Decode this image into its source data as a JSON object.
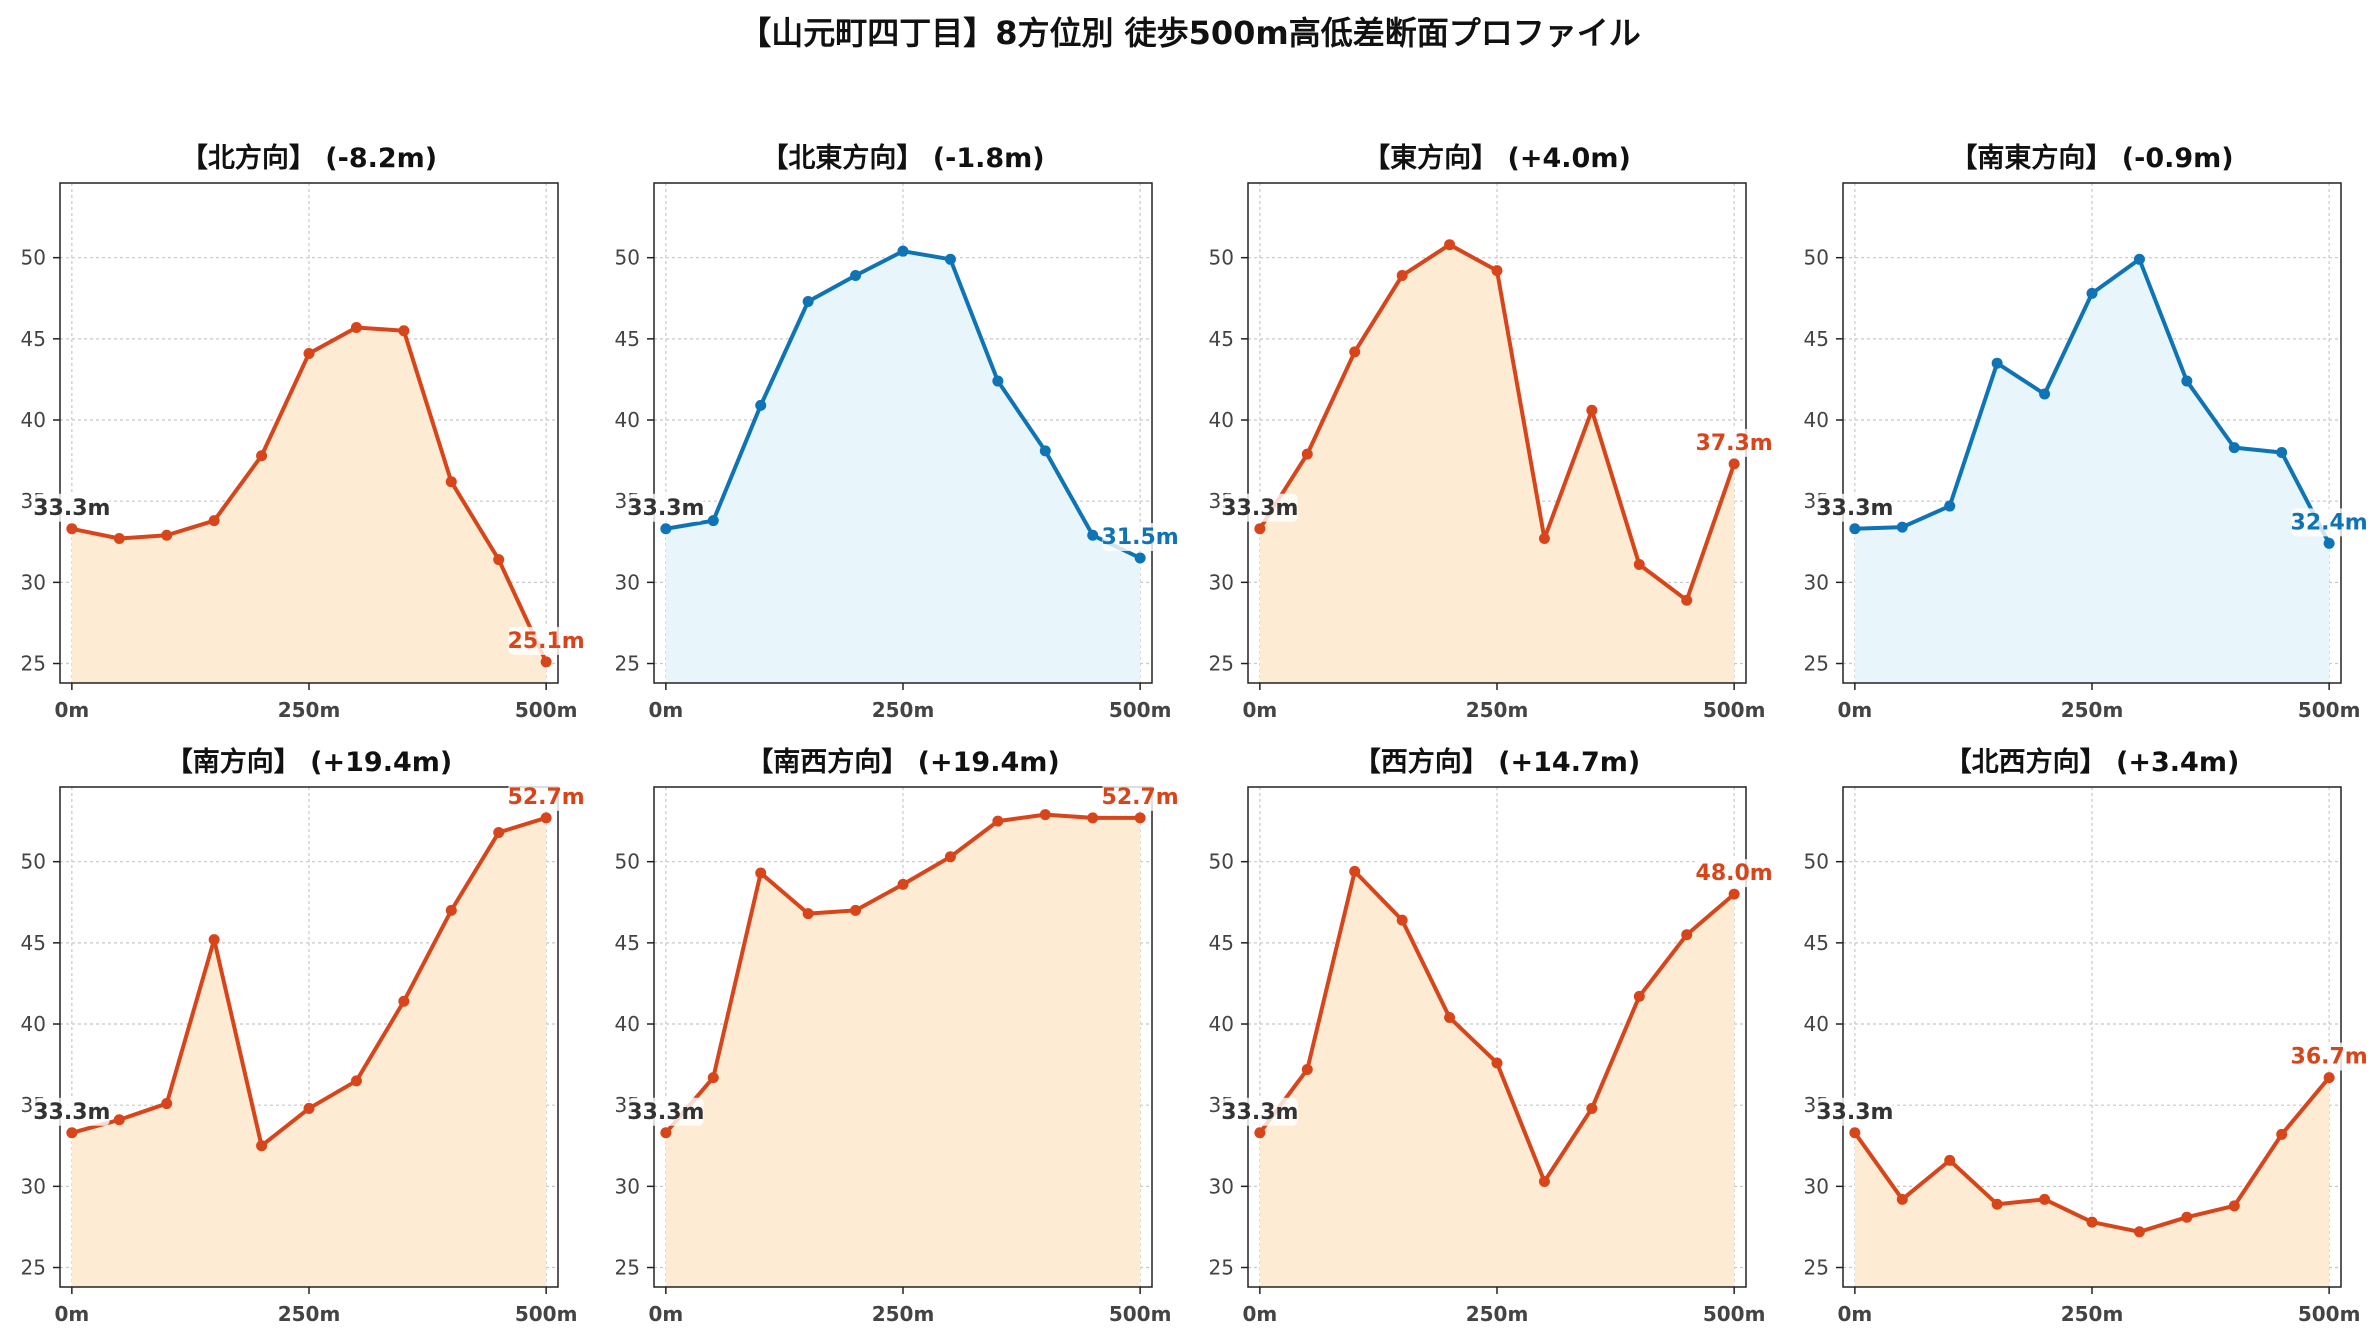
{
  "title": "【山元町四丁目】8方位別 徒歩500m高低差断面プロファイル",
  "colors": {
    "down_line": "#0e74b5",
    "down_fill": "#e8f6fb",
    "up_line": "#d9451a",
    "up_fill": "#fdecd3",
    "start_label": "#333333",
    "grid": "#c8c8c8",
    "axis": "#222222",
    "tick_label": "#444444"
  },
  "chart_data": [
    {
      "type": "area",
      "title": "【北方向】 (-8.2m)",
      "trend": "down",
      "x": [
        0,
        50,
        100,
        150,
        200,
        250,
        300,
        350,
        400,
        450,
        500
      ],
      "values": [
        33.3,
        32.7,
        32.9,
        33.8,
        37.8,
        44.1,
        45.7,
        45.5,
        36.2,
        31.4,
        25.1
      ],
      "start_label": "33.3m",
      "end_label": "25.1m",
      "xticks": [
        "0m",
        "250m",
        "500m"
      ],
      "yticks": [
        25,
        30,
        35,
        40,
        45,
        50
      ],
      "ylim": [
        23.8,
        54.6
      ],
      "xlim": [
        -12.5,
        512.5
      ],
      "grid": true
    },
    {
      "type": "area",
      "title": "【北東方向】 (-1.8m)",
      "trend": "up",
      "x": [
        0,
        50,
        100,
        150,
        200,
        250,
        300,
        350,
        400,
        450,
        500
      ],
      "values": [
        33.3,
        33.8,
        40.9,
        47.3,
        48.9,
        50.4,
        49.9,
        42.4,
        38.1,
        32.9,
        31.5
      ],
      "start_label": "33.3m",
      "end_label": "31.5m",
      "xticks": [
        "0m",
        "250m",
        "500m"
      ],
      "yticks": [
        25,
        30,
        35,
        40,
        45,
        50
      ],
      "ylim": [
        23.8,
        54.6
      ],
      "xlim": [
        -12.5,
        512.5
      ],
      "grid": true
    },
    {
      "type": "area",
      "title": "【東方向】 (+4.0m)",
      "trend": "down",
      "x": [
        0,
        50,
        100,
        150,
        200,
        250,
        300,
        350,
        400,
        450,
        500
      ],
      "values": [
        33.3,
        37.9,
        44.2,
        48.9,
        50.8,
        49.2,
        32.7,
        40.6,
        31.1,
        28.9,
        37.3
      ],
      "start_label": "33.3m",
      "end_label": "37.3m",
      "xticks": [
        "0m",
        "250m",
        "500m"
      ],
      "yticks": [
        25,
        30,
        35,
        40,
        45,
        50
      ],
      "ylim": [
        23.8,
        54.6
      ],
      "xlim": [
        -12.5,
        512.5
      ],
      "grid": true
    },
    {
      "type": "area",
      "title": "【南東方向】 (-0.9m)",
      "trend": "up",
      "x": [
        0,
        50,
        100,
        150,
        200,
        250,
        300,
        350,
        400,
        450,
        500
      ],
      "values": [
        33.3,
        33.4,
        34.7,
        43.5,
        41.6,
        47.8,
        49.9,
        42.4,
        38.3,
        38.0,
        32.4
      ],
      "start_label": "33.3m",
      "end_label": "32.4m",
      "xticks": [
        "0m",
        "250m",
        "500m"
      ],
      "yticks": [
        25,
        30,
        35,
        40,
        45,
        50
      ],
      "ylim": [
        23.8,
        54.6
      ],
      "xlim": [
        -12.5,
        512.5
      ],
      "grid": true
    },
    {
      "type": "area",
      "title": "【南方向】 (+19.4m)",
      "trend": "down",
      "x": [
        0,
        50,
        100,
        150,
        200,
        250,
        300,
        350,
        400,
        450,
        500
      ],
      "values": [
        33.3,
        34.1,
        35.1,
        45.2,
        32.5,
        34.8,
        36.5,
        41.4,
        47.0,
        51.8,
        52.7
      ],
      "start_label": "33.3m",
      "end_label": "52.7m",
      "xticks": [
        "0m",
        "250m",
        "500m"
      ],
      "yticks": [
        25,
        30,
        35,
        40,
        45,
        50
      ],
      "ylim": [
        23.8,
        54.6
      ],
      "xlim": [
        -12.5,
        512.5
      ],
      "grid": true
    },
    {
      "type": "area",
      "title": "【南西方向】 (+19.4m)",
      "trend": "down",
      "x": [
        0,
        50,
        100,
        150,
        200,
        250,
        300,
        350,
        400,
        450,
        500
      ],
      "values": [
        33.3,
        36.7,
        49.3,
        46.8,
        47.0,
        48.6,
        50.3,
        52.5,
        52.9,
        52.7,
        52.7
      ],
      "start_label": "33.3m",
      "end_label": "52.7m",
      "xticks": [
        "0m",
        "250m",
        "500m"
      ],
      "yticks": [
        25,
        30,
        35,
        40,
        45,
        50
      ],
      "ylim": [
        23.8,
        54.6
      ],
      "xlim": [
        -12.5,
        512.5
      ],
      "grid": true
    },
    {
      "type": "area",
      "title": "【西方向】 (+14.7m)",
      "trend": "down",
      "x": [
        0,
        50,
        100,
        150,
        200,
        250,
        300,
        350,
        400,
        450,
        500
      ],
      "values": [
        33.3,
        37.2,
        49.4,
        46.4,
        40.4,
        37.6,
        30.3,
        34.8,
        41.7,
        45.5,
        48.0
      ],
      "start_label": "33.3m",
      "end_label": "48.0m",
      "xticks": [
        "0m",
        "250m",
        "500m"
      ],
      "yticks": [
        25,
        30,
        35,
        40,
        45,
        50
      ],
      "ylim": [
        23.8,
        54.6
      ],
      "xlim": [
        -12.5,
        512.5
      ],
      "grid": true
    },
    {
      "type": "area",
      "title": "【北西方向】 (+3.4m)",
      "trend": "down",
      "x": [
        0,
        50,
        100,
        150,
        200,
        250,
        300,
        350,
        400,
        450,
        500
      ],
      "values": [
        33.3,
        29.2,
        31.6,
        28.9,
        29.2,
        27.8,
        27.2,
        28.1,
        28.8,
        33.2,
        36.7
      ],
      "start_label": "33.3m",
      "end_label": "36.7m",
      "xticks": [
        "0m",
        "250m",
        "500m"
      ],
      "yticks": [
        25,
        30,
        35,
        40,
        45,
        50
      ],
      "ylim": [
        23.8,
        54.6
      ],
      "xlim": [
        -12.5,
        512.5
      ],
      "grid": true
    }
  ]
}
